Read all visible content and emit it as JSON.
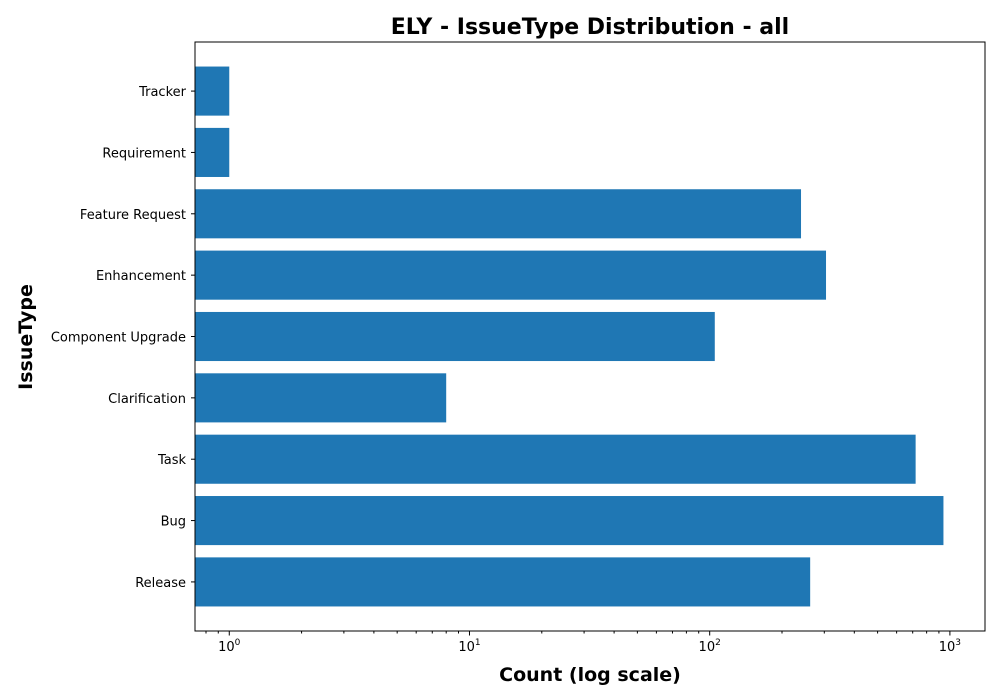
{
  "chart_data": {
    "type": "bar",
    "orientation": "horizontal",
    "title": "ELY - IssueType Distribution - all",
    "xlabel": "Count (log scale)",
    "ylabel": "IssueType",
    "x_scale": "log",
    "xlim": [
      0.72,
      1400
    ],
    "x_ticks": [
      {
        "value": 1,
        "base": "10",
        "exp": "0"
      },
      {
        "value": 10,
        "base": "10",
        "exp": "1"
      },
      {
        "value": 100,
        "base": "10",
        "exp": "2"
      },
      {
        "value": 1000,
        "base": "10",
        "exp": "3"
      }
    ],
    "categories": [
      "Release",
      "Bug",
      "Task",
      "Clarification",
      "Component Upgrade",
      "Enhancement",
      "Feature Request",
      "Requirement",
      "Tracker"
    ],
    "values": [
      262,
      940,
      720,
      8,
      105,
      305,
      240,
      1,
      1
    ],
    "bar_color": "#1f77b4",
    "grid": false,
    "legend": "none"
  }
}
